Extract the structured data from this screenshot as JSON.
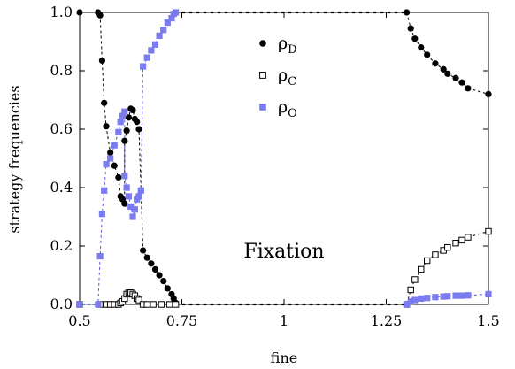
{
  "chart_data": {
    "type": "scatter",
    "title": "",
    "xlabel": "fine",
    "ylabel": "strategy frequencies",
    "xlim": [
      0.5,
      1.5
    ],
    "ylim": [
      0.0,
      1.0
    ],
    "xticks": [
      {
        "value": 0.5,
        "label": "0.5"
      },
      {
        "value": 0.75,
        "label": "0.75"
      },
      {
        "value": 1.0,
        "label": "1"
      },
      {
        "value": 1.25,
        "label": "1.25"
      },
      {
        "value": 1.5,
        "label": "1.5"
      }
    ],
    "yticks": [
      {
        "value": 0.0,
        "label": "0.0"
      },
      {
        "value": 0.2,
        "label": "0.2"
      },
      {
        "value": 0.4,
        "label": "0.4"
      },
      {
        "value": 0.6,
        "label": "0.6"
      },
      {
        "value": 0.8,
        "label": "0.8"
      },
      {
        "value": 1.0,
        "label": "1.0"
      }
    ],
    "legend_position": "top-center",
    "annotation": "Fixation",
    "grid": false,
    "series": [
      {
        "key": "rho_D",
        "name": "ρ",
        "subscript": "D",
        "marker": "filled-circle",
        "color": "#000000",
        "line_color": "#000000",
        "points": [
          [
            0.5,
            1.0
          ],
          [
            0.545,
            1.0
          ],
          [
            0.55,
            0.99
          ],
          [
            0.555,
            0.835
          ],
          [
            0.56,
            0.69
          ],
          [
            0.565,
            0.61
          ],
          [
            0.575,
            0.52
          ],
          [
            0.585,
            0.475
          ],
          [
            0.595,
            0.435
          ],
          [
            0.6,
            0.37
          ],
          [
            0.605,
            0.36
          ],
          [
            0.61,
            0.345
          ],
          [
            0.61,
            0.56
          ],
          [
            0.615,
            0.595
          ],
          [
            0.62,
            0.64
          ],
          [
            0.625,
            0.67
          ],
          [
            0.63,
            0.665
          ],
          [
            0.635,
            0.635
          ],
          [
            0.64,
            0.625
          ],
          [
            0.645,
            0.6
          ],
          [
            0.655,
            0.185
          ],
          [
            0.665,
            0.16
          ],
          [
            0.675,
            0.14
          ],
          [
            0.685,
            0.12
          ],
          [
            0.695,
            0.1
          ],
          [
            0.705,
            0.08
          ],
          [
            0.715,
            0.055
          ],
          [
            0.725,
            0.035
          ],
          [
            0.73,
            0.02
          ],
          [
            0.735,
            0.005
          ]
        ],
        "tail_points": [
          [
            1.3,
            1.0
          ],
          [
            1.31,
            0.945
          ],
          [
            1.32,
            0.91
          ],
          [
            1.335,
            0.88
          ],
          [
            1.35,
            0.855
          ],
          [
            1.37,
            0.825
          ],
          [
            1.39,
            0.805
          ],
          [
            1.4,
            0.79
          ],
          [
            1.42,
            0.775
          ],
          [
            1.435,
            0.76
          ],
          [
            1.45,
            0.74
          ],
          [
            1.5,
            0.72
          ]
        ]
      },
      {
        "key": "rho_C",
        "name": "ρ",
        "subscript": "C",
        "marker": "open-square",
        "color": "#000000",
        "line_color": "#000000",
        "points": [
          [
            0.5,
            0.0
          ],
          [
            0.55,
            0.0
          ],
          [
            0.565,
            0.0
          ],
          [
            0.575,
            0.0
          ],
          [
            0.585,
            0.0
          ],
          [
            0.595,
            0.0
          ],
          [
            0.6,
            0.005
          ],
          [
            0.605,
            0.01
          ],
          [
            0.61,
            0.02
          ],
          [
            0.615,
            0.035
          ],
          [
            0.62,
            0.04
          ],
          [
            0.625,
            0.04
          ],
          [
            0.63,
            0.035
          ],
          [
            0.635,
            0.03
          ],
          [
            0.64,
            0.02
          ],
          [
            0.645,
            0.015
          ],
          [
            0.655,
            0.0
          ],
          [
            0.665,
            0.0
          ],
          [
            0.68,
            0.0
          ],
          [
            0.7,
            0.0
          ],
          [
            0.72,
            0.0
          ],
          [
            0.735,
            0.0
          ]
        ],
        "tail_points": [
          [
            1.3,
            0.0
          ],
          [
            1.31,
            0.05
          ],
          [
            1.32,
            0.085
          ],
          [
            1.335,
            0.12
          ],
          [
            1.35,
            0.15
          ],
          [
            1.37,
            0.17
          ],
          [
            1.39,
            0.185
          ],
          [
            1.4,
            0.195
          ],
          [
            1.42,
            0.21
          ],
          [
            1.435,
            0.22
          ],
          [
            1.45,
            0.23
          ],
          [
            1.5,
            0.25
          ]
        ]
      },
      {
        "key": "rho_O",
        "name": "ρ",
        "subscript": "O",
        "marker": "filled-square",
        "color": "#7b7bf0",
        "line_color": "#5a5ae0",
        "points": [
          [
            0.5,
            0.0
          ],
          [
            0.545,
            0.0
          ],
          [
            0.55,
            0.165
          ],
          [
            0.555,
            0.31
          ],
          [
            0.56,
            0.39
          ],
          [
            0.565,
            0.48
          ],
          [
            0.575,
            0.5
          ],
          [
            0.585,
            0.545
          ],
          [
            0.595,
            0.59
          ],
          [
            0.6,
            0.625
          ],
          [
            0.605,
            0.645
          ],
          [
            0.61,
            0.66
          ],
          [
            0.61,
            0.44
          ],
          [
            0.615,
            0.4
          ],
          [
            0.62,
            0.37
          ],
          [
            0.625,
            0.335
          ],
          [
            0.63,
            0.3
          ],
          [
            0.635,
            0.325
          ],
          [
            0.64,
            0.36
          ],
          [
            0.645,
            0.37
          ],
          [
            0.65,
            0.39
          ],
          [
            0.655,
            0.815
          ],
          [
            0.665,
            0.845
          ],
          [
            0.675,
            0.87
          ],
          [
            0.685,
            0.89
          ],
          [
            0.695,
            0.92
          ],
          [
            0.705,
            0.94
          ],
          [
            0.715,
            0.965
          ],
          [
            0.725,
            0.98
          ],
          [
            0.73,
            0.995
          ],
          [
            0.735,
            1.0
          ]
        ],
        "tail_points": [
          [
            1.3,
            0.0
          ],
          [
            1.31,
            0.01
          ],
          [
            1.32,
            0.015
          ],
          [
            1.335,
            0.02
          ],
          [
            1.35,
            0.022
          ],
          [
            1.37,
            0.025
          ],
          [
            1.39,
            0.027
          ],
          [
            1.4,
            0.028
          ],
          [
            1.42,
            0.03
          ],
          [
            1.435,
            0.03
          ],
          [
            1.45,
            0.031
          ],
          [
            1.5,
            0.035
          ]
        ]
      }
    ],
    "fixation_lines": [
      {
        "from": 0.735,
        "to": 1.3,
        "y": 1.0,
        "series": "rho_D_or_O"
      },
      {
        "from": 0.735,
        "to": 1.3,
        "y": 0.0,
        "series": "rho_C"
      }
    ]
  }
}
